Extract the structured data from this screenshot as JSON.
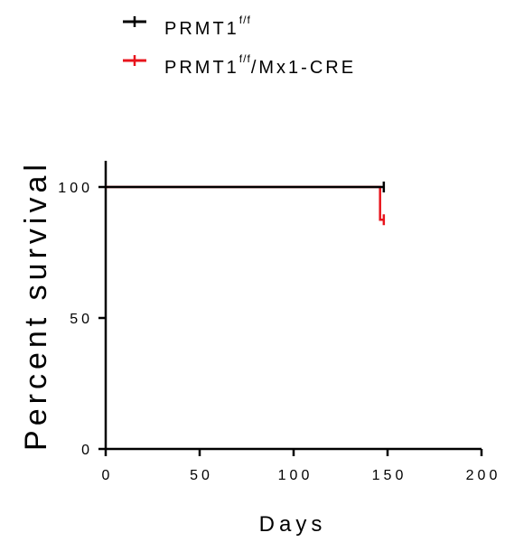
{
  "chart_data": {
    "type": "line",
    "subtype": "kaplan-meier survival",
    "xlabel": "Days",
    "ylabel": "Percent survival",
    "xlim": [
      0,
      200
    ],
    "ylim": [
      0,
      110
    ],
    "x_ticks": [
      0,
      50,
      100,
      150,
      200
    ],
    "y_ticks": [
      0,
      50,
      100
    ],
    "x_tick_labels": [
      "0",
      "50",
      "100",
      "150",
      "200"
    ],
    "y_tick_labels": [
      "0",
      "50",
      "100"
    ],
    "grid": false,
    "legend_position": "top-left",
    "series": [
      {
        "legend_base": "PRMT1",
        "legend_sup": "f/f",
        "legend_suffix": "",
        "color": "#000000",
        "steps": [
          [
            0,
            100
          ],
          [
            148,
            100
          ]
        ],
        "censored": [
          [
            148,
            100
          ]
        ]
      },
      {
        "legend_base": "PRMT1",
        "legend_sup": "f/f",
        "legend_suffix": "/Mx1-CRE",
        "color": "#e8141c",
        "steps": [
          [
            0,
            100
          ],
          [
            146,
            100
          ],
          [
            146,
            87.5
          ],
          [
            148,
            87.5
          ]
        ],
        "censored": [
          [
            148,
            87.5
          ]
        ]
      }
    ]
  }
}
